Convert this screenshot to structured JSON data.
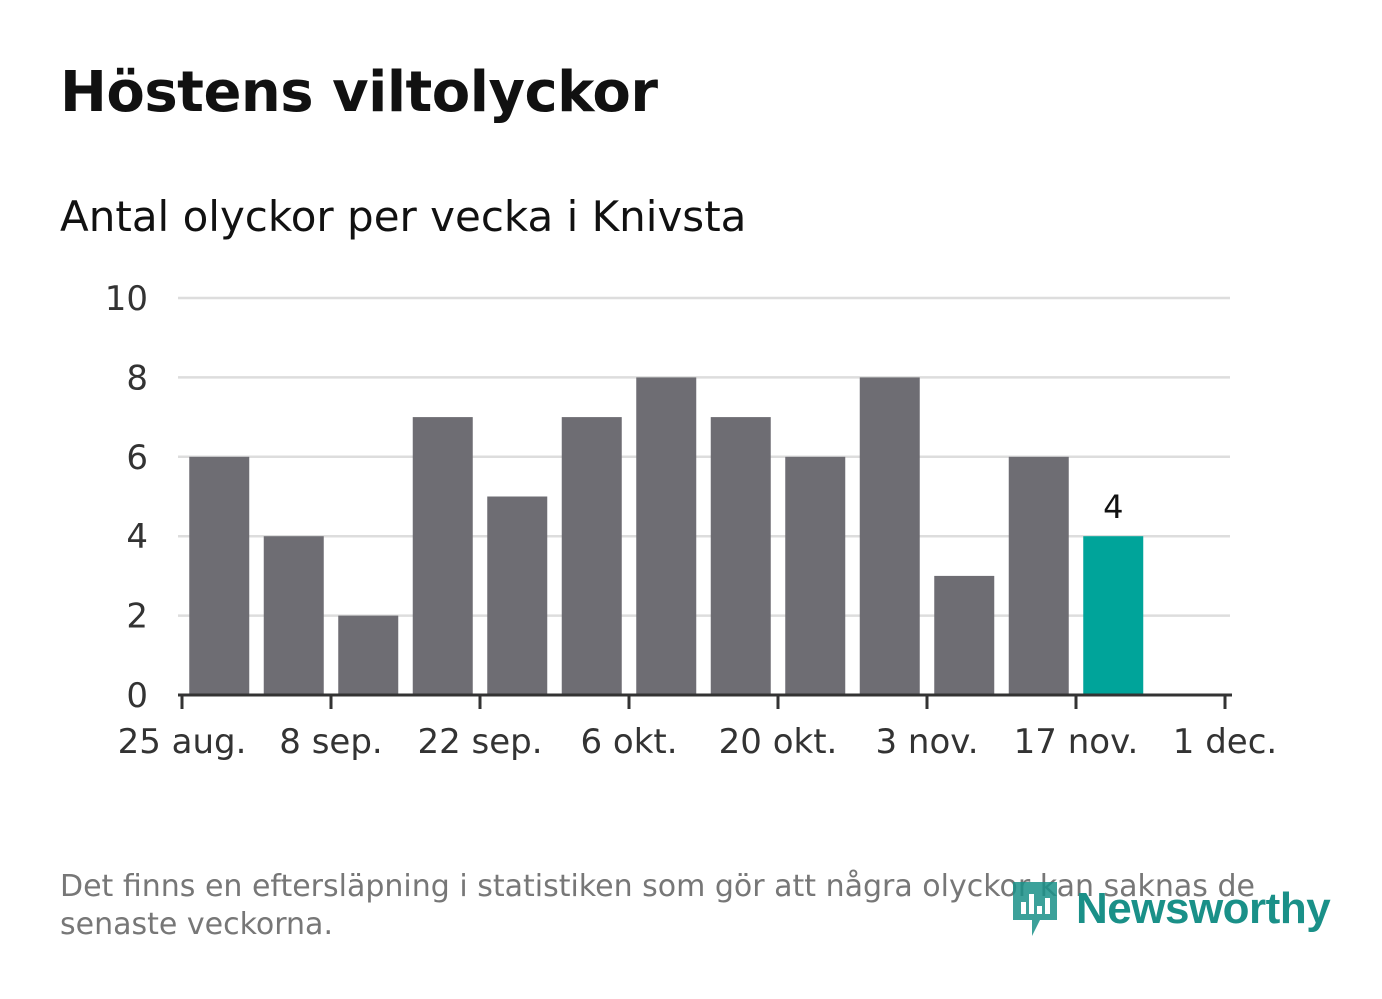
{
  "header": {
    "title": "Höstens viltolyckor",
    "subtitle": "Antal olyckor per vecka i Knivsta"
  },
  "chart_data": {
    "type": "bar",
    "title": "Höstens viltolyckor",
    "subtitle": "Antal olyckor per vecka i Knivsta",
    "xlabel": "",
    "ylabel": "",
    "ylim": [
      0,
      10
    ],
    "yticks": [
      0,
      2,
      4,
      6,
      8,
      10
    ],
    "x_ticks": [
      "25 aug.",
      "8 sep.",
      "22 sep.",
      "6 okt.",
      "20 okt.",
      "3 nov.",
      "17 nov.",
      "1 dec."
    ],
    "values": [
      6,
      4,
      2,
      7,
      5,
      7,
      8,
      7,
      6,
      8,
      3,
      6,
      4
    ],
    "highlight_index": 12,
    "highlight_label": "4",
    "grid": true,
    "colors": {
      "bar": "#6e6d73",
      "highlight": "#00a49a",
      "grid": "#dddddd",
      "axis": "#333333"
    }
  },
  "footnote": "Det finns en eftersläpning i statistiken som gör att några olyckor kan saknas de senaste veckorna.",
  "logo": {
    "text": "Newsworthy",
    "icon": "newsworthy-logo-icon",
    "color": "#1a9088"
  }
}
